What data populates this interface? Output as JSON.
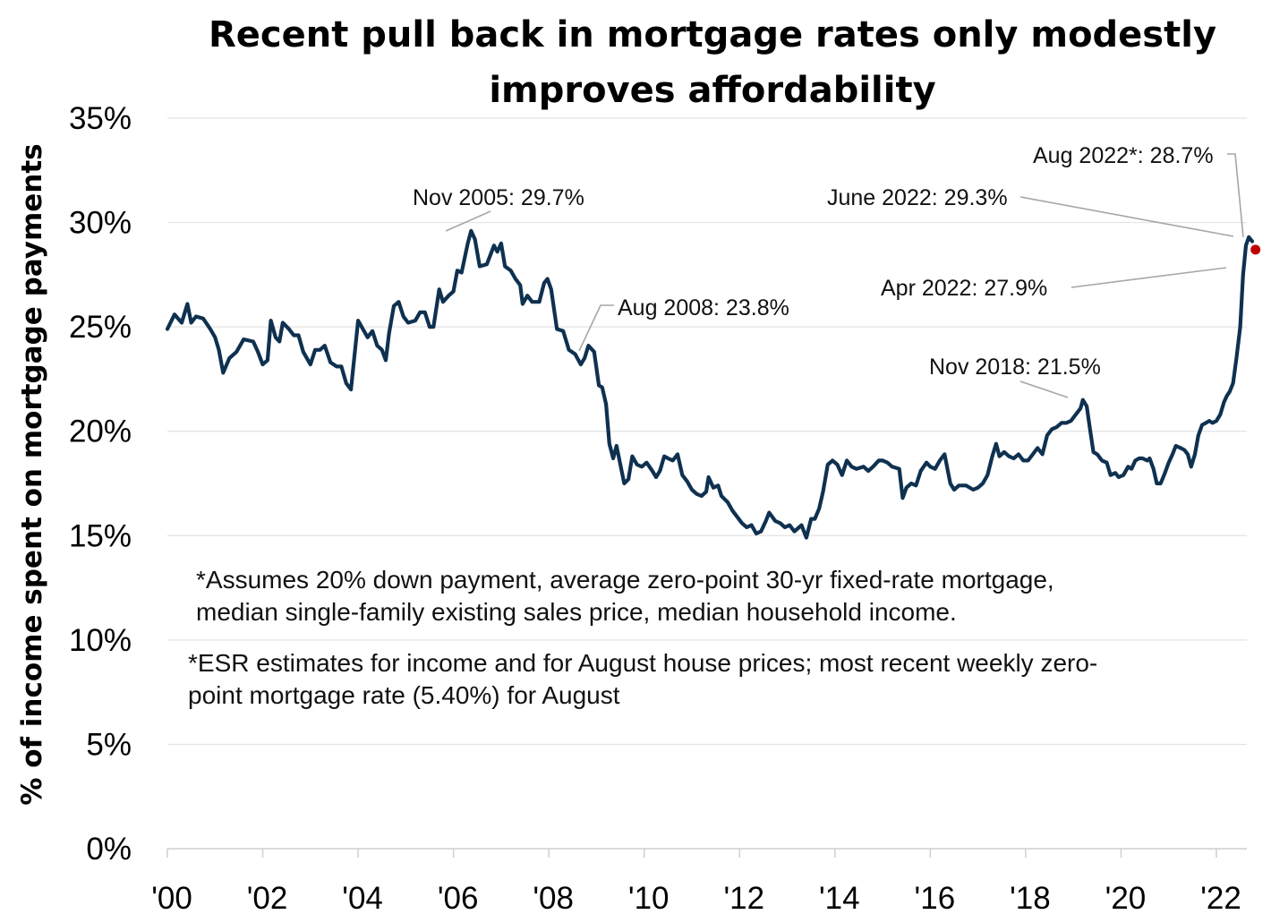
{
  "chart_data": {
    "type": "line",
    "title_lines": [
      "Recent pull back in mortgage rates only modestly",
      "improves affordability"
    ],
    "ylabel": "% of income spent on mortgage payments",
    "xlabel": "",
    "ylim": [
      0,
      35
    ],
    "xlim": [
      2000,
      2022.75
    ],
    "y_ticks": [
      {
        "value": 0,
        "label": "0%"
      },
      {
        "value": 5,
        "label": "5%"
      },
      {
        "value": 10,
        "label": "10%"
      },
      {
        "value": 15,
        "label": "15%"
      },
      {
        "value": 20,
        "label": "20%"
      },
      {
        "value": 25,
        "label": "25%"
      },
      {
        "value": 30,
        "label": "30%"
      },
      {
        "value": 35,
        "label": "35%"
      }
    ],
    "x_ticks": [
      {
        "value": 2000,
        "label": "'00"
      },
      {
        "value": 2002,
        "label": "'02"
      },
      {
        "value": 2004,
        "label": "'04"
      },
      {
        "value": 2006,
        "label": "'06"
      },
      {
        "value": 2008,
        "label": "'08"
      },
      {
        "value": 2010,
        "label": "'10"
      },
      {
        "value": 2012,
        "label": "'12"
      },
      {
        "value": 2014,
        "label": "'14"
      },
      {
        "value": 2016,
        "label": "'16"
      },
      {
        "value": 2018,
        "label": "'18"
      },
      {
        "value": 2020,
        "label": "'20"
      },
      {
        "value": 2022,
        "label": "'22"
      }
    ],
    "grid": true,
    "series": [
      {
        "name": "% of income spent on mortgage payments",
        "color": "#0f3150",
        "points": [
          [
            2000.0,
            24.9
          ],
          [
            2000.15,
            25.6
          ],
          [
            2000.3,
            25.2
          ],
          [
            2000.42,
            26.1
          ],
          [
            2000.5,
            25.2
          ],
          [
            2000.6,
            25.5
          ],
          [
            2000.75,
            25.4
          ],
          [
            2000.9,
            24.9
          ],
          [
            2001.0,
            24.5
          ],
          [
            2001.08,
            23.9
          ],
          [
            2001.17,
            22.8
          ],
          [
            2001.3,
            23.5
          ],
          [
            2001.45,
            23.8
          ],
          [
            2001.6,
            24.4
          ],
          [
            2001.8,
            24.3
          ],
          [
            2001.9,
            23.8
          ],
          [
            2002.0,
            23.2
          ],
          [
            2002.1,
            23.4
          ],
          [
            2002.17,
            25.3
          ],
          [
            2002.27,
            24.5
          ],
          [
            2002.35,
            24.3
          ],
          [
            2002.42,
            25.2
          ],
          [
            2002.55,
            24.9
          ],
          [
            2002.65,
            24.6
          ],
          [
            2002.75,
            24.6
          ],
          [
            2002.85,
            23.8
          ],
          [
            2003.0,
            23.2
          ],
          [
            2003.1,
            23.9
          ],
          [
            2003.2,
            23.9
          ],
          [
            2003.3,
            24.1
          ],
          [
            2003.42,
            23.3
          ],
          [
            2003.55,
            23.1
          ],
          [
            2003.65,
            23.1
          ],
          [
            2003.75,
            22.3
          ],
          [
            2003.85,
            22.0
          ],
          [
            2004.0,
            25.3
          ],
          [
            2004.1,
            24.9
          ],
          [
            2004.2,
            24.5
          ],
          [
            2004.3,
            24.8
          ],
          [
            2004.4,
            24.1
          ],
          [
            2004.5,
            23.9
          ],
          [
            2004.58,
            23.4
          ],
          [
            2004.65,
            24.7
          ],
          [
            2004.75,
            26.0
          ],
          [
            2004.85,
            26.2
          ],
          [
            2004.95,
            25.5
          ],
          [
            2005.05,
            25.2
          ],
          [
            2005.2,
            25.3
          ],
          [
            2005.3,
            25.7
          ],
          [
            2005.4,
            25.7
          ],
          [
            2005.5,
            25.0
          ],
          [
            2005.58,
            25.0
          ],
          [
            2005.7,
            26.8
          ],
          [
            2005.78,
            26.2
          ],
          [
            2005.9,
            26.5
          ],
          [
            2006.0,
            26.7
          ],
          [
            2006.08,
            27.7
          ],
          [
            2006.17,
            27.6
          ],
          [
            2006.3,
            29.0
          ],
          [
            2006.37,
            29.6
          ],
          [
            2006.45,
            29.2
          ],
          [
            2006.55,
            27.9
          ],
          [
            2006.7,
            28.0
          ],
          [
            2006.85,
            28.9
          ],
          [
            2006.92,
            28.6
          ],
          [
            2007.0,
            29.0
          ],
          [
            2007.08,
            27.9
          ],
          [
            2007.2,
            27.7
          ],
          [
            2007.3,
            27.3
          ],
          [
            2007.4,
            27.0
          ],
          [
            2007.45,
            26.1
          ],
          [
            2007.55,
            26.5
          ],
          [
            2007.65,
            26.2
          ],
          [
            2007.8,
            26.2
          ],
          [
            2007.9,
            27.1
          ],
          [
            2007.97,
            27.3
          ],
          [
            2008.05,
            26.8
          ],
          [
            2008.17,
            24.9
          ],
          [
            2008.3,
            24.8
          ],
          [
            2008.42,
            23.9
          ],
          [
            2008.55,
            23.7
          ],
          [
            2008.67,
            23.2
          ],
          [
            2008.75,
            23.5
          ],
          [
            2008.83,
            24.1
          ],
          [
            2008.95,
            23.8
          ],
          [
            2009.05,
            22.2
          ],
          [
            2009.12,
            22.1
          ],
          [
            2009.2,
            21.3
          ],
          [
            2009.27,
            19.4
          ],
          [
            2009.35,
            18.7
          ],
          [
            2009.42,
            19.3
          ],
          [
            2009.5,
            18.4
          ],
          [
            2009.58,
            17.5
          ],
          [
            2009.67,
            17.7
          ],
          [
            2009.75,
            18.8
          ],
          [
            2009.85,
            18.4
          ],
          [
            2009.95,
            18.3
          ],
          [
            2010.05,
            18.5
          ],
          [
            2010.17,
            18.1
          ],
          [
            2010.25,
            17.8
          ],
          [
            2010.33,
            18.1
          ],
          [
            2010.42,
            18.8
          ],
          [
            2010.5,
            18.7
          ],
          [
            2010.6,
            18.6
          ],
          [
            2010.7,
            18.9
          ],
          [
            2010.8,
            17.9
          ],
          [
            2010.9,
            17.6
          ],
          [
            2011.0,
            17.2
          ],
          [
            2011.1,
            17.0
          ],
          [
            2011.2,
            16.9
          ],
          [
            2011.3,
            17.1
          ],
          [
            2011.35,
            17.8
          ],
          [
            2011.45,
            17.3
          ],
          [
            2011.55,
            17.4
          ],
          [
            2011.62,
            16.9
          ],
          [
            2011.75,
            16.6
          ],
          [
            2011.85,
            16.2
          ],
          [
            2011.95,
            15.9
          ],
          [
            2012.05,
            15.6
          ],
          [
            2012.15,
            15.4
          ],
          [
            2012.25,
            15.5
          ],
          [
            2012.35,
            15.1
          ],
          [
            2012.45,
            15.2
          ],
          [
            2012.55,
            15.7
          ],
          [
            2012.62,
            16.1
          ],
          [
            2012.75,
            15.7
          ],
          [
            2012.85,
            15.6
          ],
          [
            2012.95,
            15.4
          ],
          [
            2013.05,
            15.5
          ],
          [
            2013.15,
            15.2
          ],
          [
            2013.3,
            15.5
          ],
          [
            2013.4,
            14.9
          ],
          [
            2013.5,
            15.8
          ],
          [
            2013.58,
            15.8
          ],
          [
            2013.67,
            16.3
          ],
          [
            2013.75,
            17.1
          ],
          [
            2013.85,
            18.4
          ],
          [
            2013.95,
            18.6
          ],
          [
            2014.05,
            18.4
          ],
          [
            2014.15,
            17.9
          ],
          [
            2014.25,
            18.6
          ],
          [
            2014.35,
            18.3
          ],
          [
            2014.45,
            18.2
          ],
          [
            2014.6,
            18.3
          ],
          [
            2014.7,
            18.1
          ],
          [
            2014.8,
            18.3
          ],
          [
            2014.92,
            18.6
          ],
          [
            2015.0,
            18.6
          ],
          [
            2015.1,
            18.5
          ],
          [
            2015.2,
            18.3
          ],
          [
            2015.35,
            18.2
          ],
          [
            2015.42,
            16.8
          ],
          [
            2015.5,
            17.3
          ],
          [
            2015.6,
            17.5
          ],
          [
            2015.7,
            17.4
          ],
          [
            2015.8,
            18.1
          ],
          [
            2015.92,
            18.5
          ],
          [
            2016.0,
            18.3
          ],
          [
            2016.1,
            18.2
          ],
          [
            2016.2,
            18.6
          ],
          [
            2016.3,
            18.9
          ],
          [
            2016.42,
            17.5
          ],
          [
            2016.5,
            17.2
          ],
          [
            2016.6,
            17.4
          ],
          [
            2016.75,
            17.4
          ],
          [
            2016.9,
            17.2
          ],
          [
            2017.0,
            17.3
          ],
          [
            2017.1,
            17.5
          ],
          [
            2017.2,
            17.9
          ],
          [
            2017.3,
            18.8
          ],
          [
            2017.38,
            19.4
          ],
          [
            2017.45,
            18.8
          ],
          [
            2017.55,
            19.0
          ],
          [
            2017.65,
            18.8
          ],
          [
            2017.75,
            18.7
          ],
          [
            2017.85,
            18.9
          ],
          [
            2017.95,
            18.6
          ],
          [
            2018.05,
            18.6
          ],
          [
            2018.15,
            18.9
          ],
          [
            2018.25,
            19.2
          ],
          [
            2018.35,
            18.9
          ],
          [
            2018.45,
            19.8
          ],
          [
            2018.55,
            20.1
          ],
          [
            2018.65,
            20.2
          ],
          [
            2018.75,
            20.4
          ],
          [
            2018.85,
            20.4
          ],
          [
            2018.95,
            20.5
          ],
          [
            2019.05,
            20.8
          ],
          [
            2019.15,
            21.1
          ],
          [
            2019.2,
            21.5
          ],
          [
            2019.28,
            21.2
          ],
          [
            2019.35,
            20.1
          ],
          [
            2019.42,
            19.0
          ],
          [
            2019.5,
            18.9
          ],
          [
            2019.6,
            18.6
          ],
          [
            2019.7,
            18.5
          ],
          [
            2019.78,
            17.9
          ],
          [
            2019.88,
            18.0
          ],
          [
            2019.95,
            17.8
          ],
          [
            2020.05,
            17.9
          ],
          [
            2020.15,
            18.3
          ],
          [
            2020.22,
            18.2
          ],
          [
            2020.3,
            18.6
          ],
          [
            2020.38,
            18.7
          ],
          [
            2020.45,
            18.7
          ],
          [
            2020.55,
            18.6
          ],
          [
            2020.6,
            18.7
          ],
          [
            2020.68,
            18.2
          ],
          [
            2020.75,
            17.5
          ],
          [
            2020.83,
            17.5
          ],
          [
            2020.92,
            18.0
          ],
          [
            2021.0,
            18.5
          ],
          [
            2021.08,
            18.9
          ],
          [
            2021.15,
            19.3
          ],
          [
            2021.25,
            19.2
          ],
          [
            2021.33,
            19.1
          ],
          [
            2021.4,
            18.9
          ],
          [
            2021.47,
            18.3
          ],
          [
            2021.55,
            18.9
          ],
          [
            2021.62,
            19.8
          ],
          [
            2021.7,
            20.3
          ],
          [
            2021.78,
            20.4
          ],
          [
            2021.85,
            20.5
          ],
          [
            2021.92,
            20.4
          ],
          [
            2022.0,
            20.5
          ],
          [
            2022.08,
            20.8
          ],
          [
            2022.16,
            21.4
          ],
          [
            2022.22,
            21.7
          ],
          [
            2022.28,
            21.9
          ],
          [
            2022.35,
            22.3
          ],
          [
            2022.42,
            23.5
          ],
          [
            2022.5,
            25.0
          ],
          [
            2022.56,
            27.5
          ],
          [
            2022.62,
            28.9
          ],
          [
            2022.68,
            29.3
          ],
          [
            2022.75,
            29.1
          ]
        ]
      }
    ],
    "highlight_point": {
      "x": 2022.82,
      "y": 28.7,
      "color": "#c00000"
    },
    "annotations": [
      {
        "text": "Nov 2005: 29.7%",
        "x": 2005.85,
        "y": 29.7
      },
      {
        "text": "Aug 2008: 23.8%",
        "x": 2008.62,
        "y": 23.8
      },
      {
        "text": "Nov 2018: 21.5%",
        "x": 2018.85,
        "y": 21.5
      },
      {
        "text": "Apr 2022: 27.9%",
        "x": 2022.28,
        "y": 27.9
      },
      {
        "text": "June 2022: 29.3%",
        "x": 2022.42,
        "y": 29.3
      },
      {
        "text": "Aug 2022*: 28.7%",
        "x": 2022.58,
        "y": 28.7
      }
    ],
    "notes": [
      [
        "*Assumes 20% down payment, average zero-point 30-yr fixed-rate mortgage,",
        "median single-family existing sales price, median household income."
      ],
      [
        "*ESR estimates for income and for August house prices; most recent weekly zero-",
        "point mortgage rate (5.40%) for August"
      ]
    ]
  }
}
